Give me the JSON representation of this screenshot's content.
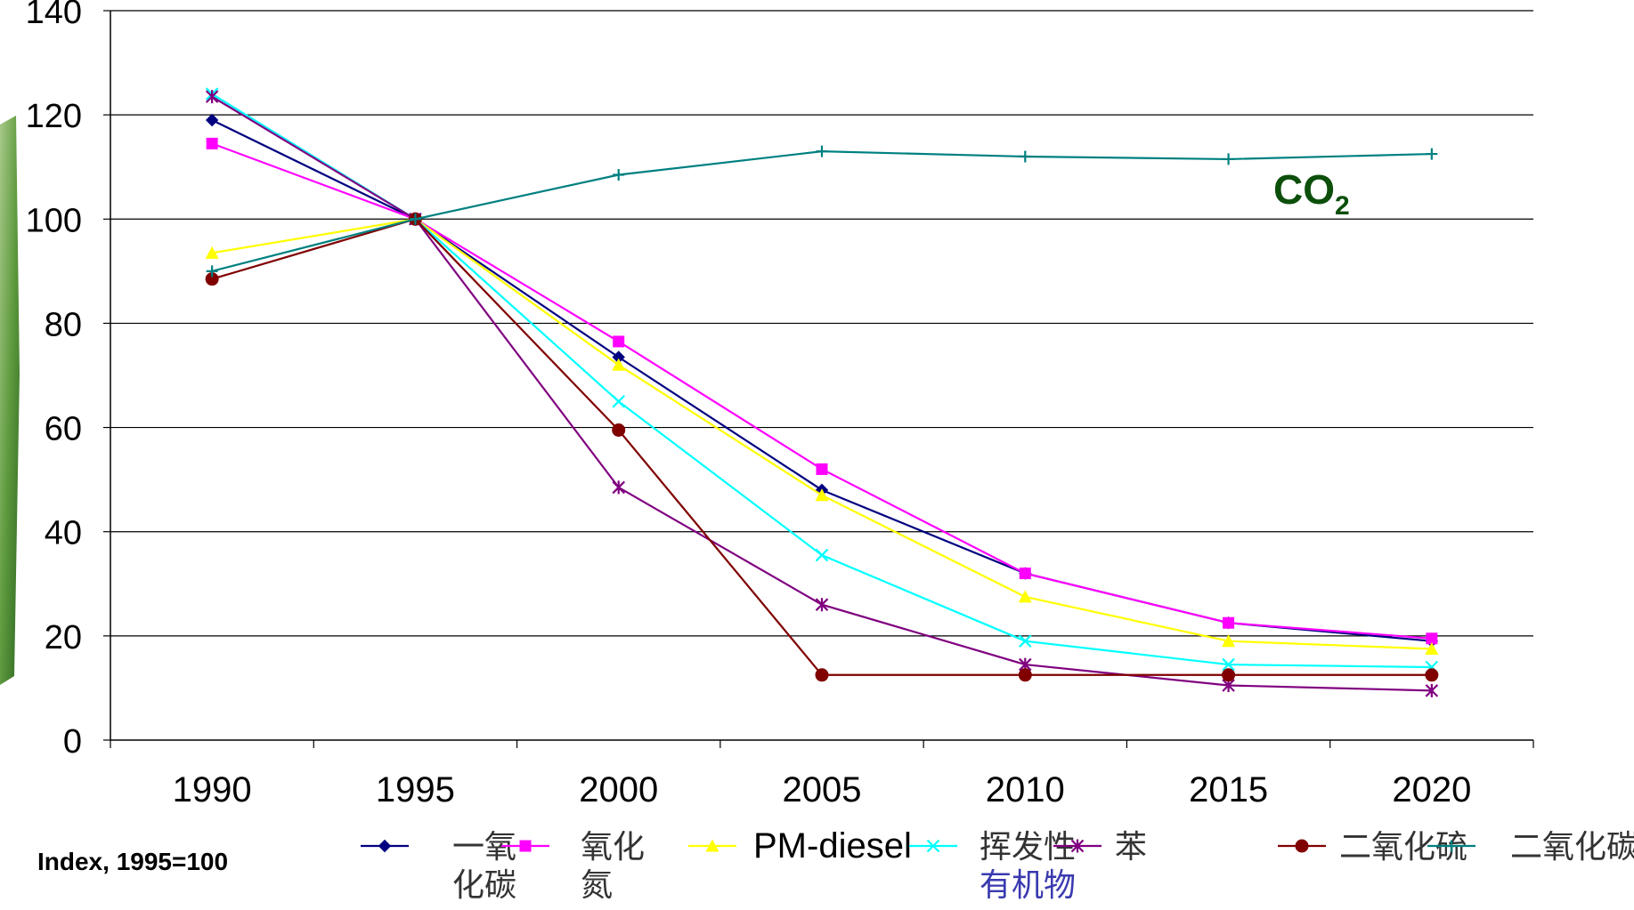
{
  "chart_data": {
    "type": "line",
    "x": [
      "1990",
      "1995",
      "2000",
      "2005",
      "2010",
      "2015",
      "2020"
    ],
    "ylim": [
      0,
      140
    ],
    "yticks": [
      "0",
      "20",
      "40",
      "60",
      "80",
      "100",
      "120",
      "140"
    ],
    "grid": true,
    "note": "Index, 1995=100",
    "annotation": {
      "text": "CO",
      "subscript": "2"
    },
    "legend_position": "bottom",
    "series": [
      {
        "name": "一氧化碳",
        "color": "#000080",
        "marker": "diamond",
        "values": [
          119,
          100,
          73.5,
          48,
          32,
          22.5,
          19
        ]
      },
      {
        "name": "氧化氮",
        "color": "#ff00ff",
        "marker": "square",
        "values": [
          114.5,
          100,
          76.5,
          52,
          32,
          22.5,
          19.5
        ]
      },
      {
        "name": "PM-diesel",
        "color": "#ffff00",
        "marker": "triangle",
        "values": [
          93.5,
          100,
          72,
          47,
          27.5,
          19,
          17.5
        ]
      },
      {
        "name": "挥发性有机物",
        "color": "#00ffff",
        "marker": "x",
        "values": [
          124,
          100,
          65,
          35.5,
          19,
          14.5,
          14
        ]
      },
      {
        "name": "苯",
        "color": "#800080",
        "marker": "star",
        "values": [
          123.5,
          100,
          48.5,
          26,
          14.5,
          10.5,
          9.5
        ]
      },
      {
        "name": "二氧化硫",
        "color": "#800000",
        "marker": "circle",
        "values": [
          88.5,
          100,
          59.5,
          12.5,
          12.5,
          12.5,
          12.5
        ]
      },
      {
        "name": "二氧化碳",
        "color": "#008080",
        "marker": "plus",
        "values": [
          90,
          100,
          108.5,
          113,
          112,
          111.5,
          112.5
        ]
      }
    ]
  },
  "legend_items": [
    {
      "name": "一氧化碳",
      "line1": "一氧",
      "line2": "化碳"
    },
    {
      "name": "氧化氮",
      "line1": "氧化",
      "line2": "氮"
    },
    {
      "name": "PM-diesel",
      "line1": "PM-diesel",
      "line2": ""
    },
    {
      "name": "挥发性有机物",
      "line1": "挥发性",
      "line2": "有机物"
    },
    {
      "name": "苯",
      "line1": "苯",
      "line2": ""
    },
    {
      "name": "二氧化硫",
      "line1": "二氧化硫",
      "line2": ""
    },
    {
      "name": "二氧化碳",
      "line1": "二氧化碳",
      "line2": ""
    }
  ]
}
